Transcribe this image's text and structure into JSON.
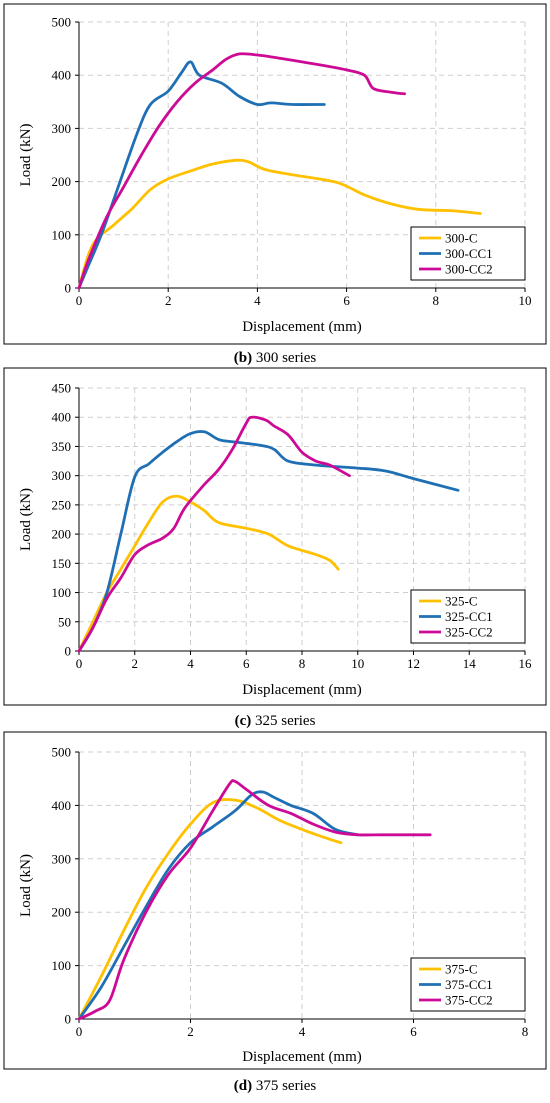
{
  "chart_data": [
    {
      "type": "line",
      "caption_letter": "(b)",
      "caption_text": " 300 series",
      "xlabel": "Displacement (mm)",
      "ylabel": "Load (kN)",
      "xlim": [
        0,
        10
      ],
      "ylim": [
        0,
        500
      ],
      "xticks": [
        0,
        2,
        4,
        6,
        8,
        10
      ],
      "yticks": [
        0,
        100,
        200,
        300,
        400,
        500
      ],
      "grid": true,
      "legend_position": "bottom-right",
      "series": [
        {
          "name": "300-C",
          "color": "#FFC000",
          "x": [
            0,
            0.3,
            0.8,
            1.2,
            1.6,
            2.0,
            2.5,
            3.0,
            3.5,
            3.8,
            4.2,
            5.0,
            5.8,
            6.4,
            7.0,
            7.6,
            8.4,
            9.0
          ],
          "y": [
            0,
            80,
            120,
            150,
            185,
            205,
            220,
            233,
            240,
            237,
            222,
            210,
            198,
            175,
            158,
            148,
            145,
            140
          ]
        },
        {
          "name": "300-CC1",
          "color": "#1F6FB4",
          "x": [
            0,
            0.2,
            0.5,
            0.9,
            1.3,
            1.6,
            2.0,
            2.3,
            2.5,
            2.7,
            3.2,
            3.6,
            4.0,
            4.3,
            4.8,
            5.5
          ],
          "y": [
            0,
            40,
            100,
            195,
            290,
            345,
            370,
            405,
            425,
            400,
            385,
            360,
            345,
            348,
            345,
            345
          ]
        },
        {
          "name": "300-CC2",
          "color": "#CC0A96",
          "x": [
            0,
            0.2,
            0.6,
            1.0,
            1.4,
            1.8,
            2.2,
            2.6,
            3.0,
            3.3,
            3.6,
            4.0,
            4.5,
            5.0,
            5.5,
            6.0,
            6.4,
            6.6,
            7.0,
            7.3
          ],
          "y": [
            0,
            50,
            130,
            190,
            250,
            305,
            350,
            385,
            410,
            430,
            440,
            438,
            432,
            425,
            418,
            410,
            400,
            375,
            368,
            365
          ]
        }
      ]
    },
    {
      "type": "line",
      "caption_letter": "(c)",
      "caption_text": " 325 series",
      "xlabel": "Displacement (mm)",
      "ylabel": "Load (kN)",
      "xlim": [
        0,
        16
      ],
      "ylim": [
        0,
        450
      ],
      "xticks": [
        0,
        2,
        4,
        6,
        8,
        10,
        12,
        14,
        16
      ],
      "yticks": [
        0,
        50,
        100,
        150,
        200,
        250,
        300,
        350,
        400,
        450
      ],
      "grid": true,
      "legend_position": "bottom-right",
      "series": [
        {
          "name": "325-C",
          "color": "#FFC000",
          "x": [
            0,
            0.5,
            1.0,
            1.5,
            2.0,
            2.5,
            3.0,
            3.5,
            4.0,
            4.5,
            5.0,
            6.0,
            6.8,
            7.5,
            8.5,
            9.0,
            9.3
          ],
          "y": [
            0,
            50,
            100,
            140,
            180,
            220,
            255,
            265,
            255,
            240,
            220,
            210,
            200,
            180,
            165,
            155,
            140
          ]
        },
        {
          "name": "325-CC1",
          "color": "#1F6FB4",
          "x": [
            0,
            0.5,
            1.0,
            1.5,
            2.0,
            2.5,
            3.0,
            3.5,
            4.0,
            4.5,
            5.0,
            5.5,
            6.5,
            7.0,
            7.5,
            8.5,
            10.0,
            11.0,
            12.0,
            13.6
          ],
          "y": [
            0,
            40,
            100,
            200,
            298,
            320,
            340,
            358,
            372,
            375,
            362,
            358,
            352,
            345,
            325,
            318,
            313,
            308,
            295,
            275
          ]
        },
        {
          "name": "325-CC2",
          "color": "#CC0A96",
          "x": [
            0,
            0.5,
            1.0,
            1.5,
            2.0,
            2.5,
            3.0,
            3.4,
            3.8,
            4.5,
            5.0,
            5.5,
            6.0,
            6.2,
            6.7,
            7.0,
            7.5,
            8.0,
            8.5,
            9.0,
            9.7
          ],
          "y": [
            0,
            40,
            90,
            125,
            165,
            182,
            193,
            210,
            245,
            285,
            310,
            345,
            390,
            400,
            395,
            385,
            370,
            340,
            325,
            318,
            300
          ]
        }
      ]
    },
    {
      "type": "line",
      "caption_letter": "(d)",
      "caption_text": " 375 series",
      "xlabel": "Displacement (mm)",
      "ylabel": "Load (kN)",
      "xlim": [
        0,
        8
      ],
      "ylim": [
        0,
        500
      ],
      "xticks": [
        0,
        2,
        4,
        6,
        8
      ],
      "yticks": [
        0,
        100,
        200,
        300,
        400,
        500
      ],
      "grid": true,
      "legend_position": "bottom-right",
      "series": [
        {
          "name": "375-C",
          "color": "#FFC000",
          "x": [
            0,
            0.4,
            0.8,
            1.2,
            1.6,
            2.0,
            2.4,
            2.8,
            3.2,
            3.6,
            4.0,
            4.4,
            4.7
          ],
          "y": [
            0,
            80,
            165,
            245,
            310,
            365,
            405,
            410,
            395,
            372,
            355,
            340,
            330
          ]
        },
        {
          "name": "375-CC1",
          "color": "#1F6FB4",
          "x": [
            0,
            0.4,
            0.8,
            1.2,
            1.6,
            2.0,
            2.4,
            2.8,
            3.1,
            3.3,
            3.5,
            3.8,
            4.2,
            4.6,
            5.0
          ],
          "y": [
            0,
            60,
            135,
            210,
            280,
            330,
            360,
            390,
            420,
            425,
            415,
            400,
            385,
            355,
            345
          ]
        },
        {
          "name": "375-CC2",
          "color": "#CC0A96",
          "x": [
            0,
            0.3,
            0.55,
            0.8,
            1.2,
            1.6,
            2.0,
            2.4,
            2.7,
            2.8,
            3.0,
            3.4,
            3.8,
            4.2,
            4.6,
            5.0,
            5.5,
            6.3
          ],
          "y": [
            0,
            15,
            35,
            110,
            200,
            270,
            320,
            390,
            440,
            445,
            430,
            400,
            385,
            365,
            350,
            345,
            345,
            345
          ]
        }
      ]
    }
  ]
}
